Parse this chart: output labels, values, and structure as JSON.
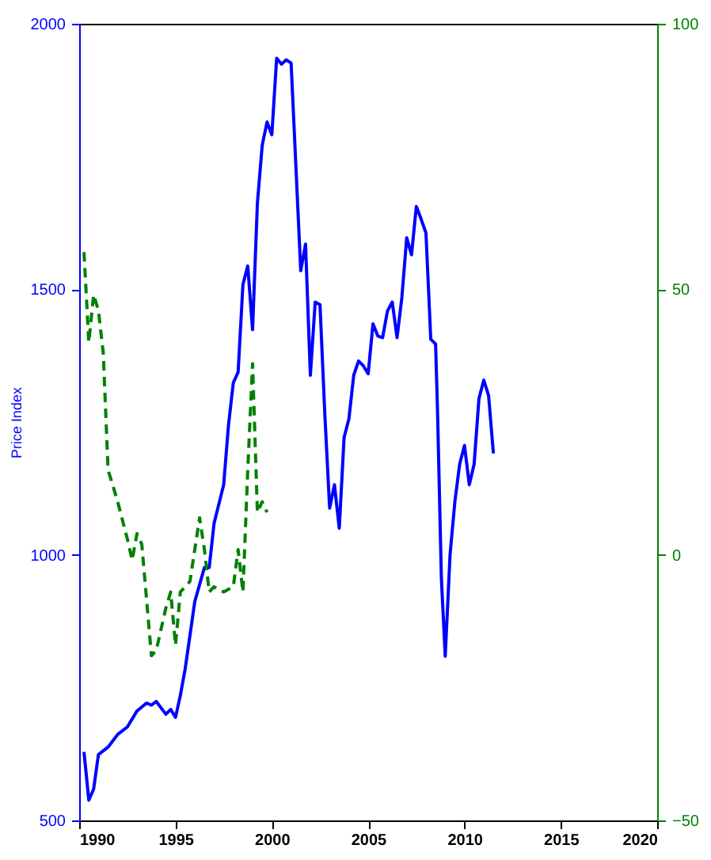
{
  "chart_data": {
    "type": "line",
    "ylabel": "Price Index",
    "xlim": [
      1990,
      2020
    ],
    "xticks": [
      1990,
      1995,
      2000,
      2005,
      2010,
      2015,
      2020
    ],
    "ylim": [
      500,
      2000
    ],
    "yticks": [
      500,
      1000,
      1500,
      2000
    ],
    "y2lim": [
      -50,
      100
    ],
    "y2ticks": [
      -50,
      0,
      50,
      100
    ],
    "grid": false,
    "marker": "none",
    "series": [
      {
        "color": "#0000ff",
        "line_style": "solid",
        "x": [
          1990.25,
          1990.5,
          1990.75,
          1991,
          1991.5,
          1992,
          1992.5,
          1993,
          1993.5,
          1993.75,
          1994,
          1994.5,
          1994.75,
          1995,
          1995.25,
          1995.5,
          1996,
          1996.5,
          1996.75,
          1997,
          1997.5,
          1997.75,
          1998,
          1998.25,
          1998.5,
          1998.75,
          1999,
          1999.25,
          1999.5,
          1999.75,
          2000,
          2000.25,
          2000.5,
          2000.75,
          2001,
          2001.5,
          2001.75,
          2002,
          2002.25,
          2002.5,
          2002.75,
          2003,
          2003.25,
          2003.5,
          2003.75,
          2004,
          2004.25,
          2004.5,
          2004.75,
          2005,
          2005.25,
          2005.5,
          2005.75,
          2006,
          2006.25,
          2006.5,
          2006.75,
          2007,
          2007.25,
          2007.5,
          2007.75,
          2008,
          2008.25,
          2008.5,
          2008.6,
          2008.8,
          2009,
          2009.25,
          2009.5,
          2009.75,
          2010,
          2010.25,
          2010.5,
          2010.75,
          2011,
          2011.25,
          2011.5
        ],
        "values": [
          629,
          538,
          559,
          624,
          638,
          662,
          676,
          706,
          721,
          717,
          724,
          700,
          709,
          694,
          735,
          785,
          912,
          976,
          976,
          1059,
          1132,
          1244,
          1324,
          1344,
          1509,
          1544,
          1424,
          1662,
          1771,
          1815,
          1791,
          1935,
          1924,
          1932,
          1926,
          1535,
          1585,
          1338,
          1476,
          1471,
          1265,
          1088,
          1132,
          1050,
          1221,
          1256,
          1338,
          1365,
          1356,
          1341,
          1435,
          1412,
          1409,
          1459,
          1476,
          1409,
          1485,
          1597,
          1565,
          1656,
          1632,
          1606,
          1406,
          1397,
          1271,
          956,
          809,
          1000,
          1100,
          1171,
          1206,
          1132,
          1171,
          1294,
          1329,
          1300,
          1191
        ]
      },
      {
        "color": "#008000",
        "line_style": "dashed",
        "axis": "y2",
        "x": [
          1990.25,
          1990.5,
          1990.75,
          1991,
          1991.25,
          1991.5,
          1992,
          1992.5,
          1992.75,
          1993,
          1993.25,
          1993.75,
          1994,
          1994.5,
          1994.75,
          1995,
          1995.25,
          1995.75,
          1996.25,
          1996.5,
          1996.75,
          1997,
          1997.5,
          1998,
          1998.25,
          1998.5,
          1998.75,
          1999,
          1999.25,
          1999.5,
          1999.75
        ],
        "values": [
          57,
          40,
          49,
          46,
          38,
          16,
          10,
          3,
          -1,
          4,
          2,
          -19,
          -18,
          -10,
          -7,
          -17,
          -7,
          -5,
          7,
          1,
          -7,
          -6,
          -7,
          -6,
          1,
          -7,
          16,
          36,
          8,
          10,
          8
        ]
      }
    ]
  }
}
